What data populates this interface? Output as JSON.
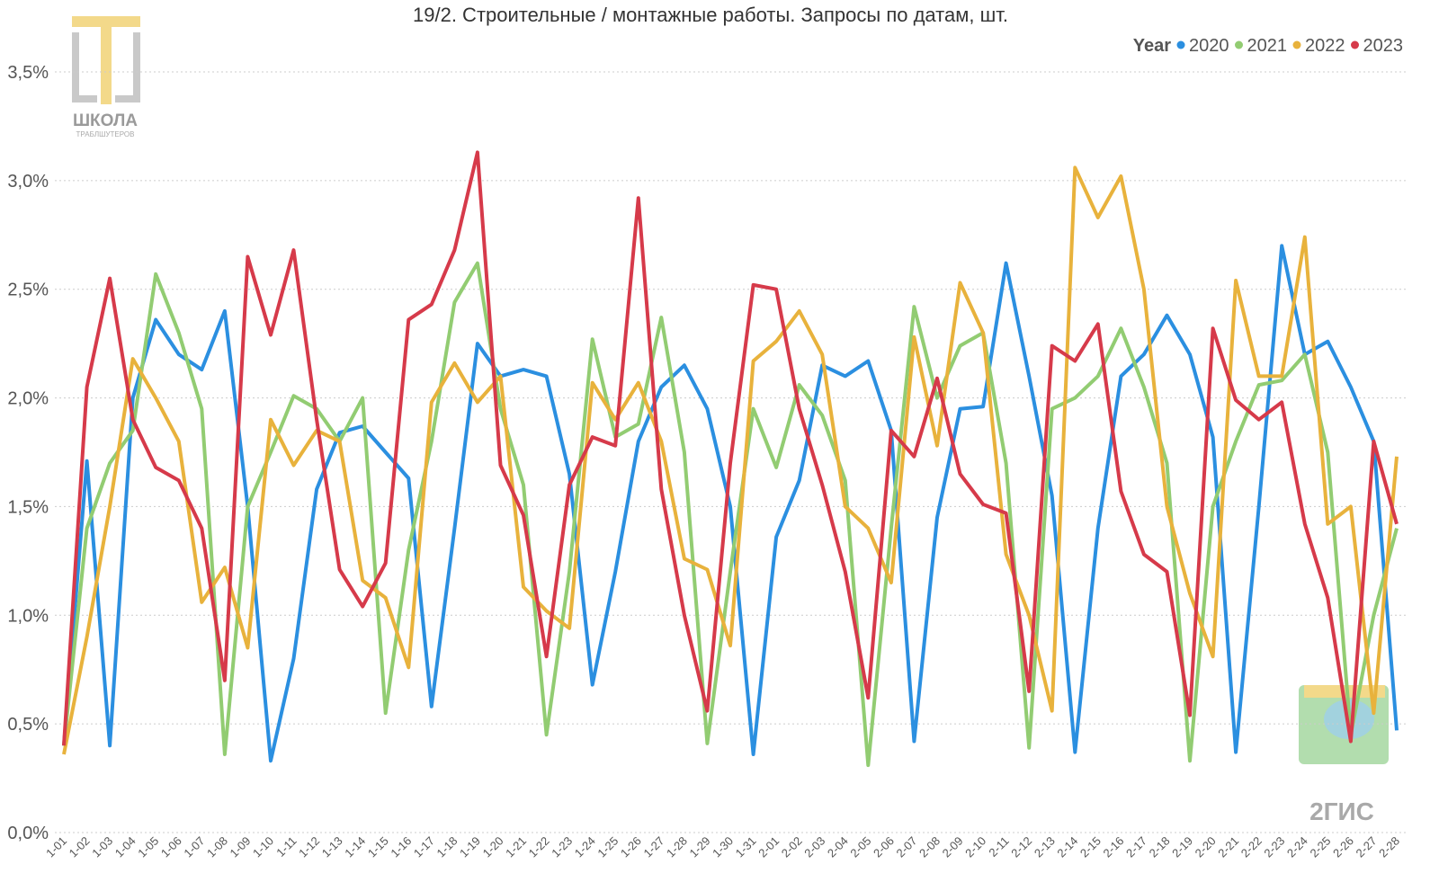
{
  "chart_data": {
    "type": "line",
    "title": "19/2. Строительные / монтажные работы. Запросы по датам, шт.",
    "legend_title": "Year",
    "legend": "top-right",
    "grid": true,
    "logos": {
      "left": "ШКОЛА",
      "left_sub": "ТРАБЛШУТЕРОВ",
      "right": "2ГИС"
    },
    "categories": [
      "1-01",
      "1-02",
      "1-03",
      "1-04",
      "1-05",
      "1-06",
      "1-07",
      "1-08",
      "1-09",
      "1-10",
      "1-11",
      "1-12",
      "1-13",
      "1-14",
      "1-15",
      "1-16",
      "1-17",
      "1-18",
      "1-19",
      "1-20",
      "1-21",
      "1-22",
      "1-23",
      "1-24",
      "1-25",
      "1-26",
      "1-27",
      "1-28",
      "1-29",
      "1-30",
      "1-31",
      "2-01",
      "2-02",
      "2-03",
      "2-04",
      "2-05",
      "2-06",
      "2-07",
      "2-08",
      "2-09",
      "2-10",
      "2-11",
      "2-12",
      "2-13",
      "2-14",
      "2-15",
      "2-16",
      "2-17",
      "2-18",
      "2-19",
      "2-20",
      "2-21",
      "2-22",
      "2-23",
      "2-24",
      "2-25",
      "2-26",
      "2-27",
      "2-28"
    ],
    "ylim": [
      0,
      3.5
    ],
    "yticks": [
      {
        "value": 0,
        "label": "0,0%"
      },
      {
        "value": 0.5,
        "label": "0,5%"
      },
      {
        "value": 1,
        "label": "1,0%"
      },
      {
        "value": 1.5,
        "label": "1,5%"
      },
      {
        "value": 2,
        "label": "2,0%"
      },
      {
        "value": 2.5,
        "label": "2,5%"
      },
      {
        "value": 3,
        "label": "3,0%"
      },
      {
        "value": 3.5,
        "label": "3,5%"
      }
    ],
    "series": [
      {
        "name": "2020",
        "color": "#2b8fe0",
        "values": [
          0.4,
          1.71,
          0.4,
          2.0,
          2.36,
          2.2,
          2.13,
          2.4,
          1.5,
          0.33,
          0.8,
          1.58,
          1.84,
          1.87,
          1.75,
          1.63,
          0.58,
          1.4,
          2.25,
          2.1,
          2.13,
          2.1,
          1.65,
          0.68,
          1.2,
          1.8,
          2.05,
          2.15,
          1.95,
          1.5,
          0.36,
          1.36,
          1.62,
          2.15,
          2.1,
          2.17,
          1.85,
          0.42,
          1.45,
          1.95,
          1.96,
          2.62,
          2.1,
          1.55,
          0.37,
          1.4,
          2.1,
          2.2,
          2.38,
          2.2,
          1.82,
          0.37,
          1.5,
          2.7,
          2.2,
          2.26,
          2.05,
          1.8,
          0.47
        ]
      },
      {
        "name": "2021",
        "color": "#92cc72",
        "values": [
          0.4,
          1.4,
          1.7,
          1.85,
          2.57,
          2.3,
          1.95,
          0.36,
          1.5,
          1.75,
          2.01,
          1.95,
          1.8,
          2.0,
          0.55,
          1.3,
          1.8,
          2.44,
          2.62,
          1.95,
          1.6,
          0.45,
          1.2,
          2.27,
          1.82,
          1.88,
          2.37,
          1.75,
          0.41,
          1.2,
          1.95,
          1.68,
          2.06,
          1.92,
          1.62,
          0.31,
          1.4,
          2.42,
          2.0,
          2.24,
          2.3,
          1.7,
          0.39,
          1.95,
          2.0,
          2.1,
          2.32,
          2.05,
          1.7,
          0.33,
          1.5,
          1.8,
          2.06,
          2.08,
          2.2,
          1.75,
          0.45,
          1.0,
          1.4
        ]
      },
      {
        "name": "2022",
        "color": "#e8b23c",
        "values": [
          0.36,
          0.9,
          1.5,
          2.18,
          2.0,
          1.8,
          1.06,
          1.22,
          0.85,
          1.9,
          1.69,
          1.85,
          1.8,
          1.16,
          1.08,
          0.76,
          1.98,
          2.16,
          1.98,
          2.1,
          1.13,
          1.02,
          0.94,
          2.07,
          1.9,
          2.07,
          1.8,
          1.26,
          1.21,
          0.86,
          2.17,
          2.26,
          2.4,
          2.2,
          1.5,
          1.4,
          1.15,
          2.28,
          1.78,
          2.53,
          2.3,
          1.28,
          1.0,
          0.56,
          3.06,
          2.83,
          3.02,
          2.5,
          1.5,
          1.1,
          0.81,
          2.54,
          2.1,
          2.1,
          2.74,
          1.42,
          1.5,
          0.55,
          1.73
        ]
      },
      {
        "name": "2023",
        "color": "#d63a4a",
        "values": [
          0.4,
          2.05,
          2.55,
          1.9,
          1.68,
          1.62,
          1.4,
          0.7,
          2.65,
          2.29,
          2.68,
          1.9,
          1.21,
          1.04,
          1.24,
          2.36,
          2.43,
          2.68,
          3.13,
          1.69,
          1.46,
          0.81,
          1.6,
          1.82,
          1.78,
          2.92,
          1.58,
          1.0,
          0.56,
          1.7,
          2.52,
          2.5,
          1.95,
          1.6,
          1.2,
          0.62,
          1.85,
          1.73,
          2.09,
          1.65,
          1.51,
          1.47,
          0.65,
          2.24,
          2.17,
          2.34,
          1.57,
          1.28,
          1.2,
          0.54,
          2.32,
          1.99,
          1.9,
          1.98,
          1.42,
          1.08,
          0.42,
          1.8,
          1.42
        ]
      }
    ]
  }
}
